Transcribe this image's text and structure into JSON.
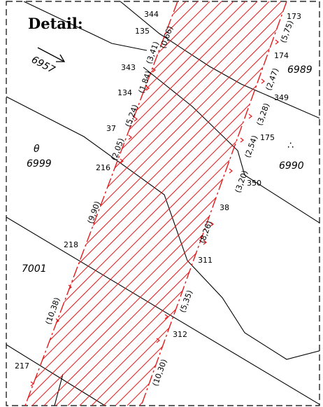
{
  "title": "Detail:",
  "parcels": [
    "6957",
    "6989",
    "6999",
    "6990",
    "7001"
  ],
  "points": [
    "344",
    "135",
    "343",
    "134",
    "37",
    "216",
    "218",
    "217",
    "173",
    "174",
    "349",
    "175",
    "350",
    "38",
    "311",
    "312"
  ],
  "left_dimensions": [
    "(0,66)",
    "(3,41)",
    "(1,84)",
    "(5,24)",
    "(2,05)",
    "(9,90)",
    "(10,38)"
  ],
  "right_dimensions": [
    "(5,75)",
    "(2,47)",
    "(3,28)",
    "(2,54)",
    "(3,20)",
    "(8,26)",
    "(5,35)",
    "(10,30)"
  ],
  "symbols": [
    "θ",
    "∴"
  ],
  "colors": {
    "strip": "#e41a1c",
    "line": "#000000",
    "background": "#ffffff"
  }
}
